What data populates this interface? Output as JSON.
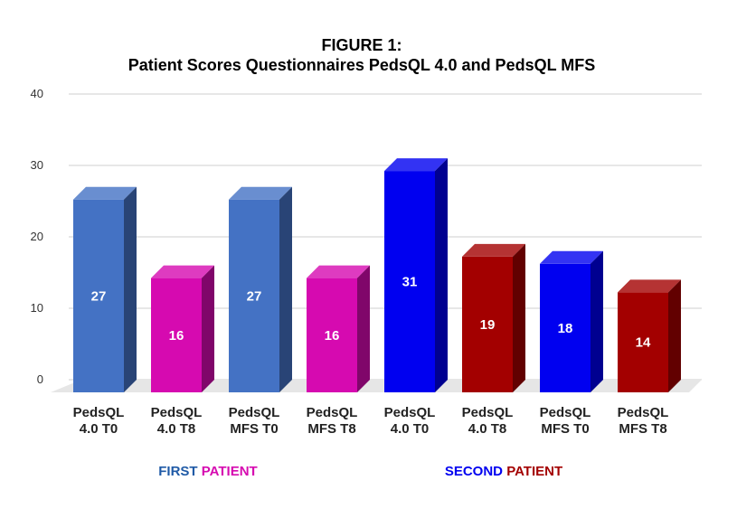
{
  "chart_data": {
    "type": "bar",
    "title_lines": [
      "FIGURE 1:",
      "Patient Scores Questionnaires PedsQL 4.0 and PedsQL MFS"
    ],
    "categories": [
      [
        "PedsQL",
        "4.0  T0"
      ],
      [
        "PedsQL",
        "4.0 T8"
      ],
      [
        "PedsQL",
        "MFS T0"
      ],
      [
        "PedsQL",
        "MFS T8"
      ],
      [
        "PedsQL",
        "4.0 T0"
      ],
      [
        "PedsQL",
        "4.0 T8"
      ],
      [
        "PedsQL",
        "MFS T0"
      ],
      [
        "PedsQL",
        "MFS T8"
      ]
    ],
    "values": [
      27,
      16,
      27,
      16,
      31,
      19,
      18,
      14
    ],
    "data_labels": [
      "27",
      "16",
      "27",
      "16",
      "31",
      "19",
      "18",
      "14"
    ],
    "bar_colors": [
      "#4472c4",
      "#d60ab0",
      "#4472c4",
      "#d60ab0",
      "#0000f0",
      "#a30000",
      "#0000f0",
      "#a30000"
    ],
    "ylim": [
      0,
      40
    ],
    "yticks": [
      0,
      10,
      20,
      30,
      40
    ],
    "grid": true,
    "style": "3d-bars",
    "groups": [
      {
        "parts": [
          {
            "text": "FIRST",
            "color": "#1f5aa6"
          },
          {
            "text": " PATIENT",
            "color": "#d60ab0"
          }
        ]
      },
      {
        "parts": [
          {
            "text": "SECOND",
            "color": "#0000f0"
          },
          {
            "text": " PATIENT",
            "color": "#a30000"
          }
        ]
      }
    ]
  }
}
